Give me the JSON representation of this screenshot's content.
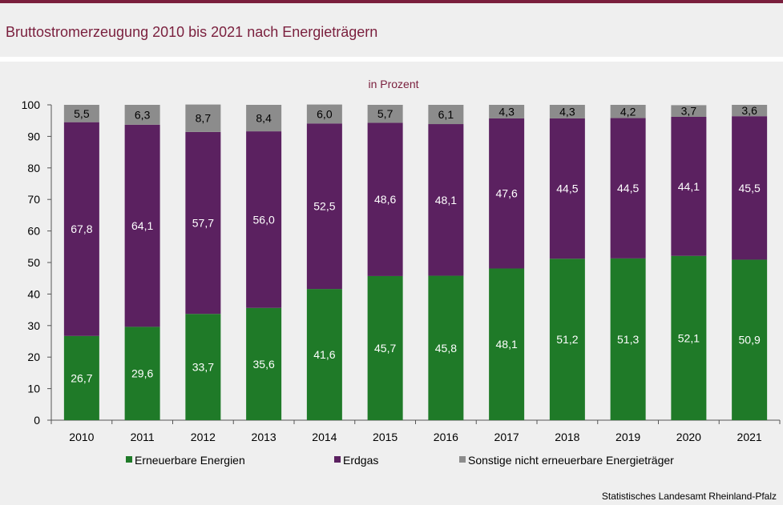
{
  "header": {
    "title": "Bruttostromerzeugung 2010 bis 2021 nach Energieträgern"
  },
  "footer": {
    "source": "Statistisches Landesamt  Rheinland-Pfalz"
  },
  "chart_data": {
    "type": "bar",
    "stacked": true,
    "subtitle": "in Prozent",
    "categories": [
      "2010",
      "2011",
      "2012",
      "2013",
      "2014",
      "2015",
      "2016",
      "2017",
      "2018",
      "2019",
      "2020",
      "2021"
    ],
    "series": [
      {
        "name": "Erneuerbare Energien",
        "color": "#1f7a28",
        "values": [
          26.7,
          29.6,
          33.7,
          35.6,
          41.6,
          45.7,
          45.8,
          48.1,
          51.2,
          51.3,
          52.1,
          50.9
        ]
      },
      {
        "name": "Erdgas",
        "color": "#5b2160",
        "values": [
          67.8,
          64.1,
          57.7,
          56.0,
          52.5,
          48.6,
          48.1,
          47.6,
          44.5,
          44.5,
          44.1,
          45.5
        ]
      },
      {
        "name": "Sonstige nicht erneuerbare Energieträger",
        "color": "#8c8c8c",
        "values": [
          5.5,
          6.3,
          8.7,
          8.4,
          6.0,
          5.7,
          6.1,
          4.3,
          4.3,
          4.2,
          3.7,
          3.6
        ]
      }
    ],
    "ylim": [
      0,
      100
    ],
    "yticks": [
      0,
      10,
      20,
      30,
      40,
      50,
      60,
      70,
      80,
      90,
      100
    ],
    "grid": false,
    "legend_position": "bottom",
    "data_labels": true,
    "decimal_separator": ","
  }
}
